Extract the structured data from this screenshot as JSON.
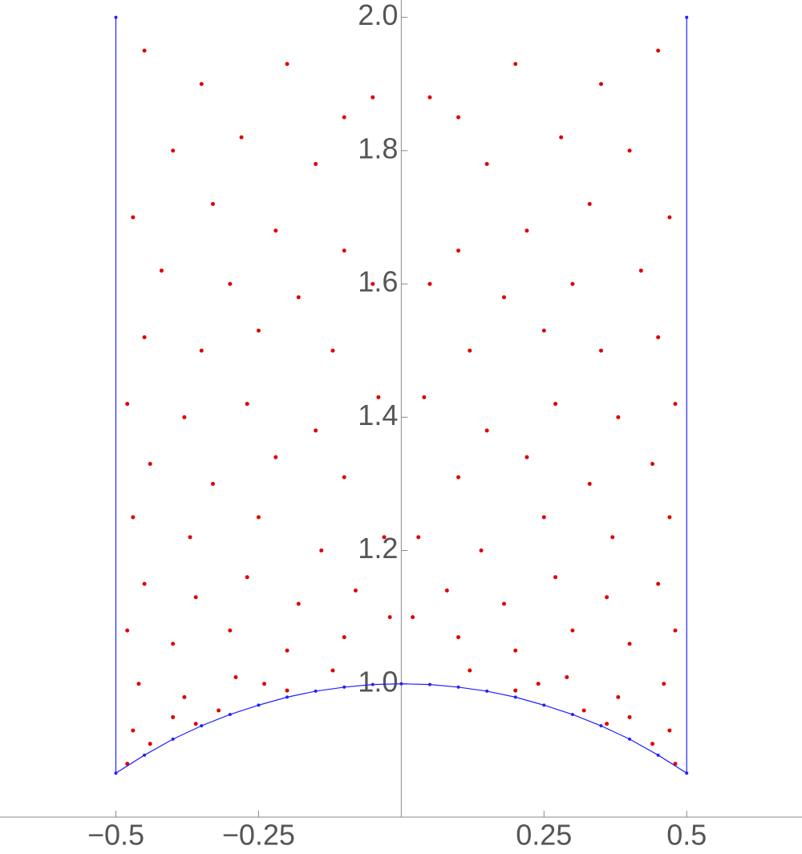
{
  "chart_data": {
    "type": "scatter",
    "xlim": [
      -0.703,
      0.702
    ],
    "ylim": [
      0.8,
      2.026
    ],
    "xticks": [
      {
        "value": -0.5,
        "label": "−0.5"
      },
      {
        "value": -0.25,
        "label": "−0.25"
      },
      0.25,
      0.5
    ],
    "yticks": [
      {
        "value": 1.0,
        "label": "1.0"
      },
      1.2,
      1.4,
      1.6,
      1.8,
      {
        "value": 2.0,
        "label": "2.0"
      }
    ],
    "series": [
      {
        "color": "#e00000",
        "x": [
          -0.45,
          -0.35,
          -0.2,
          -0.1,
          -0.4,
          -0.28,
          -0.15,
          -0.05,
          -0.47,
          -0.33,
          -0.22,
          -0.1,
          -0.42,
          -0.3,
          -0.18,
          -0.05,
          -0.45,
          -0.35,
          -0.25,
          -0.12,
          -0.48,
          -0.38,
          -0.27,
          -0.15,
          -0.04,
          -0.44,
          -0.33,
          -0.22,
          -0.1,
          -0.47,
          -0.37,
          -0.25,
          -0.14,
          -0.03,
          -0.45,
          -0.36,
          -0.27,
          -0.18,
          -0.08,
          -0.48,
          -0.4,
          -0.3,
          -0.2,
          -0.1,
          -0.02,
          -0.46,
          -0.38,
          -0.29,
          -0.2,
          -0.12,
          -0.47,
          -0.4,
          -0.32,
          -0.24,
          -0.48,
          -0.44,
          -0.36,
          0.45,
          0.35,
          0.2,
          0.1,
          0.4,
          0.28,
          0.15,
          0.05,
          0.47,
          0.33,
          0.22,
          0.1,
          0.42,
          0.3,
          0.18,
          0.05,
          0.45,
          0.35,
          0.25,
          0.12,
          0.48,
          0.38,
          0.27,
          0.15,
          0.04,
          0.44,
          0.33,
          0.22,
          0.1,
          0.47,
          0.37,
          0.25,
          0.14,
          0.03,
          0.45,
          0.36,
          0.27,
          0.18,
          0.08,
          0.48,
          0.4,
          0.3,
          0.2,
          0.1,
          0.02,
          0.46,
          0.38,
          0.29,
          0.2,
          0.12,
          0.47,
          0.4,
          0.32,
          0.24,
          0.48,
          0.44,
          0.36
        ],
        "values": [
          1.95,
          1.9,
          1.93,
          1.85,
          1.8,
          1.82,
          1.78,
          1.88,
          1.7,
          1.72,
          1.68,
          1.65,
          1.62,
          1.6,
          1.58,
          1.6,
          1.52,
          1.5,
          1.53,
          1.5,
          1.42,
          1.4,
          1.42,
          1.38,
          1.43,
          1.33,
          1.3,
          1.34,
          1.31,
          1.25,
          1.22,
          1.25,
          1.2,
          1.22,
          1.15,
          1.13,
          1.16,
          1.12,
          1.14,
          1.08,
          1.06,
          1.08,
          1.05,
          1.07,
          1.1,
          1.0,
          0.98,
          1.01,
          0.99,
          1.02,
          0.93,
          0.95,
          0.96,
          1.0,
          0.88,
          0.91,
          0.94,
          1.95,
          1.9,
          1.93,
          1.85,
          1.8,
          1.82,
          1.78,
          1.88,
          1.7,
          1.72,
          1.68,
          1.65,
          1.62,
          1.6,
          1.58,
          1.6,
          1.52,
          1.5,
          1.53,
          1.5,
          1.42,
          1.4,
          1.42,
          1.38,
          1.43,
          1.33,
          1.3,
          1.34,
          1.31,
          1.25,
          1.22,
          1.25,
          1.2,
          1.22,
          1.15,
          1.13,
          1.16,
          1.12,
          1.14,
          1.08,
          1.06,
          1.08,
          1.05,
          1.07,
          1.1,
          1.0,
          0.98,
          1.01,
          0.99,
          1.02,
          0.93,
          0.95,
          0.96,
          1.0,
          0.88,
          0.91,
          0.94
        ]
      },
      {
        "color": "#2020ff",
        "line": true,
        "x": [
          -0.5,
          -0.5,
          -0.45,
          -0.4,
          -0.35,
          -0.3,
          -0.25,
          -0.2,
          -0.15,
          -0.1,
          -0.05,
          0,
          0.05,
          0.1,
          0.15,
          0.2,
          0.25,
          0.3,
          0.35,
          0.4,
          0.45,
          0.5,
          0.5
        ],
        "values": [
          2.0,
          0.866,
          0.893,
          0.917,
          0.937,
          0.954,
          0.968,
          0.98,
          0.989,
          0.995,
          0.999,
          1.0,
          0.999,
          0.995,
          0.989,
          0.98,
          0.968,
          0.954,
          0.937,
          0.917,
          0.893,
          0.866,
          2.0
        ]
      }
    ]
  }
}
